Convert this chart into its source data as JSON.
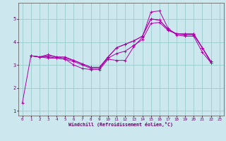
{
  "xlabel": "Windchill (Refroidissement éolien,°C)",
  "background_color": "#cce8ee",
  "line_color": "#aa00aa",
  "grid_color": "#99cccc",
  "text_color": "#660066",
  "spine_color": "#666666",
  "xlim": [
    -0.5,
    23.5
  ],
  "ylim": [
    0.8,
    5.7
  ],
  "xticks": [
    0,
    1,
    2,
    3,
    4,
    5,
    6,
    7,
    8,
    9,
    10,
    11,
    12,
    13,
    14,
    15,
    16,
    17,
    18,
    19,
    20,
    21,
    22,
    23
  ],
  "yticks": [
    1,
    2,
    3,
    4,
    5
  ],
  "series": [
    [
      1.35,
      3.4,
      3.35,
      3.3,
      3.3,
      3.25,
      3.0,
      2.85,
      2.8,
      2.8,
      3.25,
      3.2,
      3.2,
      3.8,
      4.2,
      5.3,
      5.35,
      4.6,
      4.3,
      4.25,
      4.25,
      3.55,
      3.1,
      null
    ],
    [
      null,
      3.4,
      3.35,
      3.35,
      3.3,
      3.25,
      3.15,
      3.0,
      2.85,
      2.85,
      3.3,
      3.5,
      3.6,
      3.85,
      4.1,
      4.8,
      4.85,
      4.5,
      4.35,
      4.3,
      4.3,
      3.75,
      3.1,
      null
    ],
    [
      null,
      3.4,
      3.35,
      3.45,
      3.35,
      3.3,
      3.2,
      3.05,
      2.9,
      2.9,
      3.35,
      3.75,
      3.9,
      4.05,
      4.25,
      5.0,
      4.95,
      4.55,
      4.35,
      4.35,
      4.35,
      3.75,
      3.15,
      null
    ],
    [
      null,
      3.4,
      3.35,
      3.4,
      3.35,
      3.35,
      3.2,
      3.05,
      2.9,
      2.9,
      3.35,
      3.75,
      3.9,
      4.05,
      4.25,
      5.0,
      4.95,
      4.55,
      4.35,
      4.35,
      4.35,
      3.75,
      3.15,
      null
    ]
  ]
}
